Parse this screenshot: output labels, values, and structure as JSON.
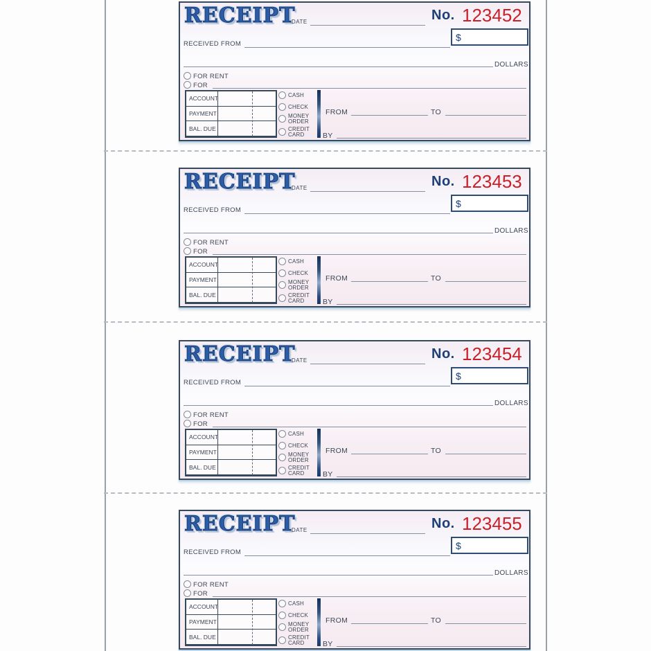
{
  "document": {
    "type": "receipt-book-page",
    "receipt_count": 4
  },
  "template": {
    "title": "RECEIPT",
    "date_label": "DATE",
    "no_label": "No.",
    "currency_symbol": "$",
    "received_from_label": "RECEIVED FROM",
    "dollars_label": "DOLLARS",
    "for_rent_label": "FOR RENT",
    "for_label": "FOR",
    "account_rows": [
      "ACCOUNT",
      "PAYMENT",
      "BAL. DUE"
    ],
    "payment_methods": [
      "CASH",
      "CHECK",
      "MONEY ORDER",
      "CREDIT CARD"
    ],
    "from_label": "FROM",
    "to_label": "TO",
    "by_label": "BY"
  },
  "receipts": [
    {
      "number": "123452"
    },
    {
      "number": "123453"
    },
    {
      "number": "123454"
    },
    {
      "number": "123455"
    }
  ],
  "colors": {
    "title_blue": "#2d5ca6",
    "title_outline": "#1b3e74",
    "no_navy": "#1d3f76",
    "number_red": "#c9202a",
    "border_navy": "#36485c",
    "label_color": "#3c4655",
    "line_color": "#8391a3",
    "circle_gray": "#828c99",
    "perforation_gray": "#b6bac1",
    "page_edge_gray": "#9aa0a8"
  }
}
